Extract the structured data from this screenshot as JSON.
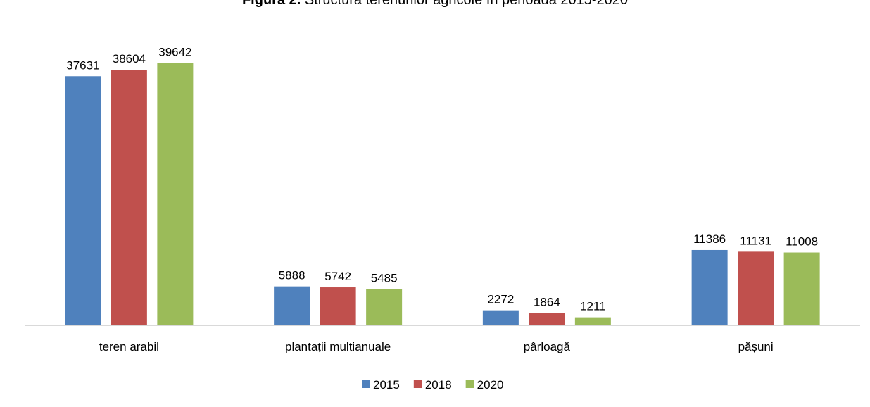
{
  "chart_data": {
    "type": "bar",
    "title": {
      "label": "Figura 2.",
      "text": "Structura terenurilor agricole în perioada 2015-2020"
    },
    "categories": [
      "teren arabil",
      "plantații multianuale",
      "pârloagă",
      "pășuni"
    ],
    "series": [
      {
        "name": "2015",
        "color": "#4f81bd",
        "values": [
          37631,
          5888,
          2272,
          11386
        ]
      },
      {
        "name": "2018",
        "color": "#c0504d",
        "values": [
          38604,
          5742,
          1864,
          11131
        ]
      },
      {
        "name": "2020",
        "color": "#9bbb59",
        "values": [
          39642,
          5485,
          1211,
          11008
        ]
      }
    ],
    "ylim": [
      0,
      40000
    ]
  }
}
